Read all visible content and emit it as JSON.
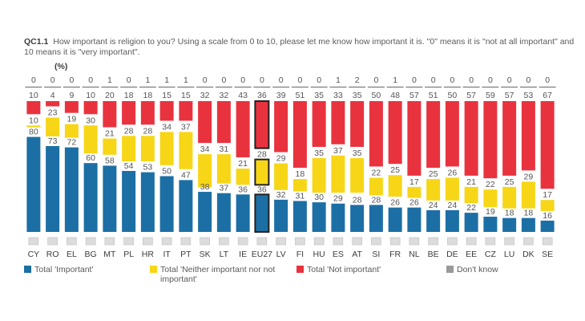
{
  "question": {
    "code": "QC1.1",
    "text": "How important is religion to you? Using a scale from 0 to 10, please let me know how important it is. \"0\" means it is \"not at all important\" and 10 means it is \"very important\".",
    "unit": "(%)"
  },
  "colors": {
    "important": "#1c6fa5",
    "neither": "#f7d617",
    "not_important": "#e8333f",
    "dont_know": "#9a9a9a",
    "highlight_border": "#222222"
  },
  "chart_data": {
    "type": "bar",
    "stacked": true,
    "orientation": "vertical",
    "categories": [
      "CY",
      "RO",
      "EL",
      "BG",
      "MT",
      "PL",
      "HR",
      "IT",
      "PT",
      "SK",
      "LT",
      "IE",
      "EU27",
      "LV",
      "FI",
      "HU",
      "ES",
      "AT",
      "SI",
      "FR",
      "NL",
      "BE",
      "DE",
      "EE",
      "CZ",
      "LU",
      "DK",
      "SE"
    ],
    "highlight_category": "EU27",
    "series": [
      {
        "name": "Total 'Important'",
        "key": "important",
        "values": [
          80,
          73,
          72,
          60,
          58,
          54,
          53,
          50,
          47,
          38,
          37,
          36,
          36,
          32,
          31,
          30,
          29,
          28,
          28,
          26,
          26,
          24,
          24,
          22,
          19,
          18,
          18,
          16
        ]
      },
      {
        "name": "Total 'Neither important nor not important'",
        "key": "neither",
        "values": [
          10,
          23,
          19,
          30,
          21,
          28,
          28,
          34,
          37,
          34,
          31,
          21,
          28,
          29,
          18,
          35,
          37,
          35,
          22,
          25,
          17,
          25,
          26,
          21,
          22,
          25,
          29,
          17
        ]
      },
      {
        "name": "Total 'Not important'",
        "key": "not_important",
        "values": [
          10,
          4,
          9,
          10,
          20,
          18,
          18,
          15,
          15,
          32,
          32,
          43,
          36,
          39,
          51,
          35,
          33,
          35,
          50,
          48,
          57,
          51,
          50,
          57,
          59,
          57,
          53,
          67
        ]
      },
      {
        "name": "Don't know",
        "key": "dont_know",
        "values": [
          0,
          0,
          0,
          0,
          1,
          0,
          1,
          1,
          1,
          0,
          0,
          0,
          0,
          0,
          0,
          0,
          1,
          2,
          0,
          1,
          0,
          0,
          0,
          0,
          0,
          0,
          0,
          0
        ]
      }
    ],
    "ylim": [
      0,
      100
    ],
    "grid": false,
    "legend_position": "bottom"
  },
  "legend": [
    {
      "key": "important",
      "label": "Total 'Important'"
    },
    {
      "key": "neither",
      "label": "Total 'Neither important nor not important'"
    },
    {
      "key": "not_important",
      "label": "Total 'Not important'"
    },
    {
      "key": "dont_know",
      "label": "Don't know"
    }
  ]
}
